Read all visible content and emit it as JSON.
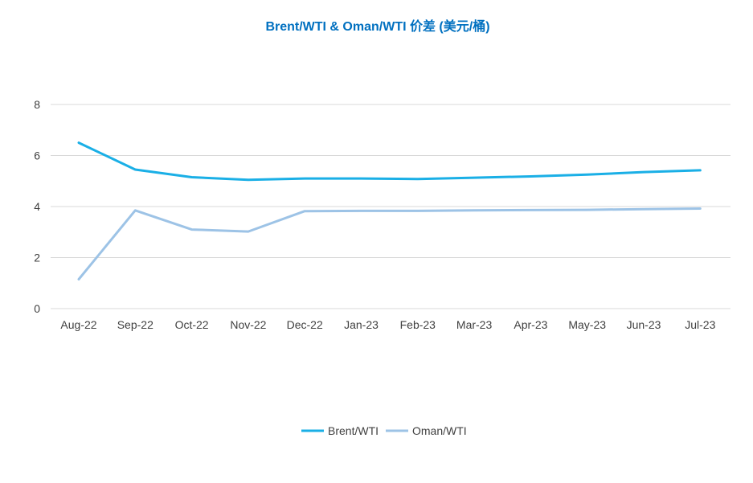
{
  "chart_data": {
    "type": "line",
    "title": "Brent/WTI & Oman/WTI 价差 (美元/桶)",
    "xlabel": "",
    "ylabel": "",
    "categories": [
      "Aug-22",
      "Sep-22",
      "Oct-22",
      "Nov-22",
      "Dec-22",
      "Jan-23",
      "Feb-23",
      "Mar-23",
      "Apr-23",
      "May-23",
      "Jun-23",
      "Jul-23"
    ],
    "ylim": [
      0,
      8
    ],
    "yticks": [
      0,
      2,
      4,
      6,
      8
    ],
    "grid": true,
    "legend_position": "bottom",
    "series": [
      {
        "name": "Brent/WTI",
        "color": "#1AAFE6",
        "values": [
          6.5,
          5.45,
          5.15,
          5.05,
          5.1,
          5.1,
          5.08,
          5.13,
          5.18,
          5.25,
          5.35,
          5.42
        ]
      },
      {
        "name": "Oman/WTI",
        "color": "#9DC3E6",
        "values": [
          1.15,
          3.85,
          3.1,
          3.02,
          3.82,
          3.83,
          3.83,
          3.85,
          3.86,
          3.87,
          3.9,
          3.92
        ]
      }
    ]
  }
}
